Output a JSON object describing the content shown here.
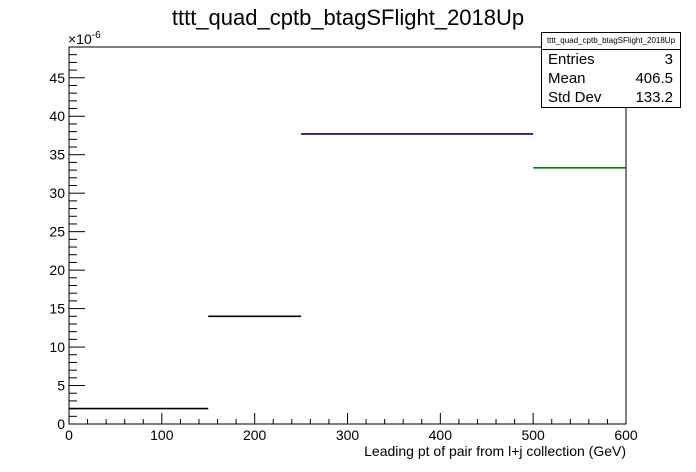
{
  "chart_data": {
    "type": "step",
    "title": "tttt_quad_cptb_btagSFlight_2018Up",
    "xlabel": "Leading pt of pair from l+j collection (GeV)",
    "ylabel": "",
    "y_exponent_label": "×10",
    "y_exponent_power": "-6",
    "xlim": [
      0,
      600
    ],
    "ylim": [
      0,
      49
    ],
    "x_ticks": [
      0,
      100,
      200,
      300,
      400,
      500,
      600
    ],
    "x_tick_labels": [
      "0",
      "100",
      "200",
      "300",
      "400",
      "500",
      "600"
    ],
    "y_ticks": [
      0,
      5,
      10,
      15,
      20,
      25,
      30,
      35,
      40,
      45
    ],
    "y_tick_labels": [
      "0",
      "5",
      "10",
      "15",
      "20",
      "25",
      "30",
      "35",
      "40",
      "45"
    ],
    "grid": false,
    "bins": [
      {
        "xlow": 0,
        "xhigh": 150,
        "value": 2.0,
        "color": "#000000"
      },
      {
        "xlow": 150,
        "xhigh": 250,
        "value": 14.0,
        "color": "#000000"
      },
      {
        "xlow": 250,
        "xhigh": 500,
        "value": 37.7,
        "color": "#00007f"
      },
      {
        "xlow": 500,
        "xhigh": 600,
        "value": 33.3,
        "color": "#007f00"
      }
    ],
    "legend_position": "top-right"
  },
  "stats_box": {
    "title": "tttt_quad_cptb_btagSFlight_2018Up",
    "rows": [
      {
        "label": "Entries",
        "value": "3"
      },
      {
        "label": "Mean",
        "value": "406.5"
      },
      {
        "label": "Std Dev",
        "value": "133.2"
      }
    ]
  }
}
